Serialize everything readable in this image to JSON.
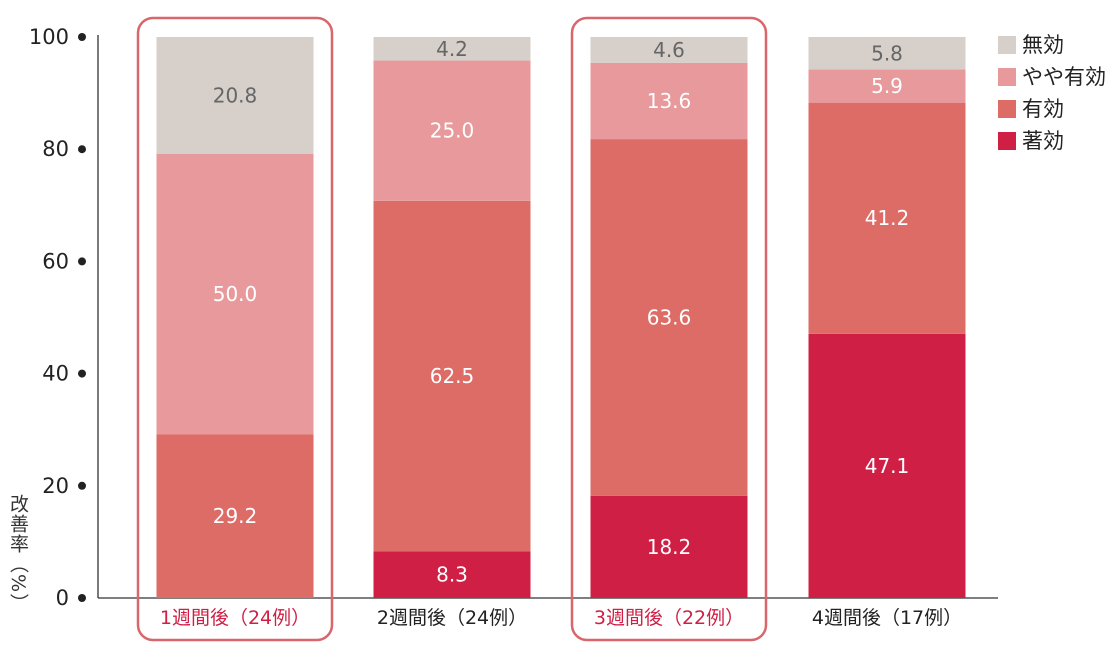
{
  "chart_data": {
    "type": "bar",
    "stacked": true,
    "ylabel": "改善率（%）",
    "ylim": [
      0,
      100
    ],
    "yticks": [
      0,
      20,
      40,
      60,
      80,
      100
    ],
    "categories": [
      "1週間後（24例）",
      "2週間後（24例）",
      "3週間後（22例）",
      "4週間後（17例）"
    ],
    "highlighted_categories": [
      0,
      2
    ],
    "series": [
      {
        "name": "著効",
        "color": "#d01f45",
        "values": [
          0,
          8.3,
          18.2,
          47.1
        ]
      },
      {
        "name": "有効",
        "color": "#dd6b66",
        "values": [
          29.2,
          62.5,
          63.6,
          41.2
        ]
      },
      {
        "name": "やや有効",
        "color": "#e8999c",
        "values": [
          50.0,
          25.0,
          13.6,
          5.9
        ]
      },
      {
        "name": "無効",
        "color": "#d6cfca",
        "values": [
          20.8,
          4.2,
          4.6,
          5.8
        ]
      }
    ],
    "data_labels": [
      [
        "",
        "29.2",
        "50.0",
        "20.8"
      ],
      [
        "8.3",
        "62.5",
        "25.0",
        "4.2"
      ],
      [
        "18.2",
        "63.6",
        "13.6",
        "4.6"
      ],
      [
        "47.1",
        "41.2",
        "5.9",
        "5.8"
      ]
    ],
    "legend": {
      "position": "top-right",
      "order": [
        "無効",
        "やや有効",
        "有効",
        "著効"
      ]
    },
    "colors": {
      "highlight": "#d9666a",
      "highlight_text": "#d01f45",
      "label_dark": "#666666",
      "label_light": "#ffffff",
      "axis": "#333333"
    },
    "grid": false
  }
}
